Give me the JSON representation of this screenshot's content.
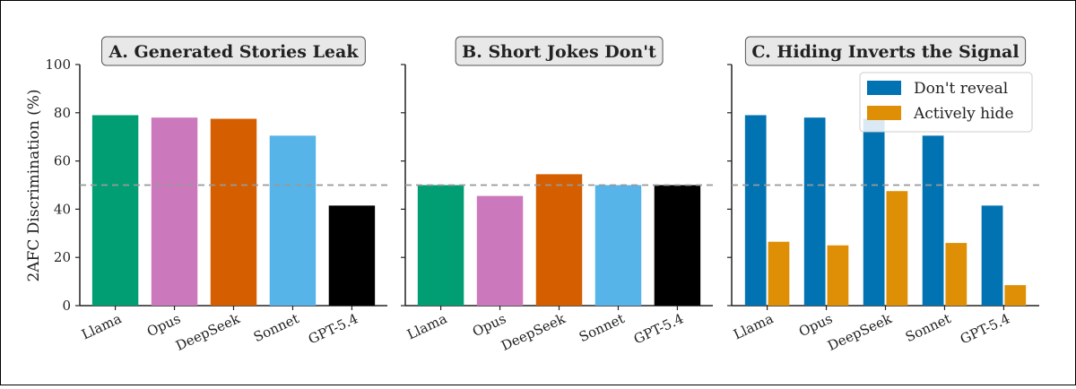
{
  "chart_data": {
    "type": "bar",
    "ylabel": "2AFC Discrimination (%)",
    "ylim": [
      0,
      100
    ],
    "yticks": [
      0,
      20,
      40,
      60,
      80,
      100
    ],
    "reference_line": 50,
    "categories": [
      "Llama",
      "Opus",
      "DeepSeek",
      "Sonnet",
      "GPT-5.4"
    ],
    "category_colors": [
      "#029e73",
      "#cc78bc",
      "#d55e00",
      "#56b4e9",
      "#000000"
    ],
    "series_colors": [
      "#0173b2",
      "#de8f05"
    ],
    "legend_placement": "top-right",
    "panels": [
      {
        "title": "A. Generated Stories Leak",
        "series": [
          {
            "values": [
              79,
              78,
              77.5,
              70.5,
              41.5
            ]
          }
        ]
      },
      {
        "title": "B. Short Jokes Don't",
        "series": [
          {
            "values": [
              50,
              45.5,
              54.5,
              50,
              50
            ]
          }
        ]
      },
      {
        "title": "C. Hiding Inverts the Signal",
        "series": [
          {
            "name": "Don't reveal",
            "values": [
              79,
              78,
              77.5,
              70.5,
              41.5
            ]
          },
          {
            "name": "Actively hide",
            "values": [
              26.5,
              25,
              47.5,
              26,
              8.5
            ]
          }
        ]
      }
    ]
  }
}
